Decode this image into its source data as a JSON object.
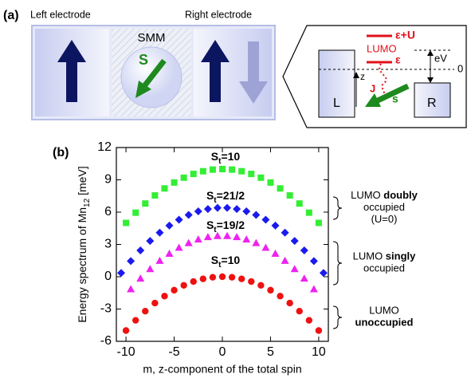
{
  "diagram": {
    "panel_label": "(a)",
    "left_label": "Left electrode",
    "right_label": "Right electrode",
    "molecule": "SMM",
    "spin": "S",
    "inset": {
      "level_upper": "ε+U",
      "level_name": "LUMO",
      "level_lower": "ε",
      "bias": "eV",
      "zero": "0",
      "axis": "z",
      "coupling": "J",
      "spin": "s",
      "left": "L",
      "right": "R"
    }
  },
  "chart_data": {
    "type": "scatter",
    "panel_label": "(b)",
    "ylabel": [
      "Energy spectrum of Mn",
      "12",
      " [meV]"
    ],
    "xlabel": "m, z-component of the total spin",
    "xlim": [
      -11,
      11
    ],
    "xticks": [
      -10,
      -5,
      0,
      5,
      10
    ],
    "ylim": [
      -6,
      12
    ],
    "yticks": [
      -6,
      -3,
      0,
      3,
      6,
      9,
      12
    ],
    "series": [
      {
        "label": [
          "S",
          "t",
          "=10"
        ],
        "marker": "square",
        "color": "#33ee33",
        "x": [
          -10,
          -9,
          -8,
          -7,
          -6,
          -5,
          -4,
          -3,
          -2,
          -1,
          0,
          1,
          2,
          3,
          4,
          5,
          6,
          7,
          8,
          9,
          10
        ],
        "values": [
          5,
          5.95,
          6.8,
          7.55,
          8.2,
          8.75,
          9.2,
          9.55,
          9.8,
          9.95,
          10,
          9.95,
          9.8,
          9.55,
          9.2,
          8.75,
          8.2,
          7.55,
          6.8,
          5.95,
          5
        ]
      },
      {
        "label": [
          "S",
          "t",
          "=21/2"
        ],
        "marker": "diamond",
        "color": "#1a1aee",
        "x": [
          -10.5,
          -9.5,
          -8.5,
          -7.5,
          -6.5,
          -5.5,
          -4.5,
          -3.5,
          -2.5,
          -1.5,
          -0.5,
          0.5,
          1.5,
          2.5,
          3.5,
          4.5,
          5.5,
          6.5,
          7.5,
          8.5,
          9.5,
          10.5
        ],
        "values": [
          0.35,
          1.45,
          2.44,
          3.32,
          4.09,
          4.75,
          5.3,
          5.74,
          6.07,
          6.29,
          6.4,
          6.4,
          6.29,
          6.07,
          5.74,
          5.3,
          4.75,
          4.09,
          3.32,
          2.44,
          1.45,
          0.35
        ]
      },
      {
        "label": [
          "S",
          "t",
          "=19/2"
        ],
        "marker": "triangle",
        "color": "#ee22ee",
        "x": [
          -9.5,
          -8.5,
          -7.5,
          -6.5,
          -5.5,
          -4.5,
          -3.5,
          -2.5,
          -1.5,
          -0.5,
          0.5,
          1.5,
          2.5,
          3.5,
          4.5,
          5.5,
          6.5,
          7.5,
          8.5,
          9.5
        ],
        "values": [
          -1.15,
          -0.16,
          0.72,
          1.49,
          2.15,
          2.7,
          3.14,
          3.47,
          3.69,
          3.8,
          3.8,
          3.69,
          3.47,
          3.14,
          2.7,
          2.15,
          1.49,
          0.72,
          -0.16,
          -1.15
        ]
      },
      {
        "label": [
          "S",
          "t",
          "=10"
        ],
        "marker": "circle",
        "color": "#ee1111",
        "x": [
          -10,
          -9,
          -8,
          -7,
          -6,
          -5,
          -4,
          -3,
          -2,
          -1,
          0,
          1,
          2,
          3,
          4,
          5,
          6,
          7,
          8,
          9,
          10
        ],
        "values": [
          -5,
          -4.05,
          -3.2,
          -2.45,
          -1.8,
          -1.25,
          -0.8,
          -0.45,
          -0.2,
          -0.05,
          0,
          -0.05,
          -0.2,
          -0.45,
          -0.8,
          -1.25,
          -1.8,
          -2.45,
          -3.2,
          -4.05,
          -5
        ]
      }
    ],
    "brackets": [
      {
        "lines": [
          [
            {
              "text": "LUMO ",
              "bold": false
            },
            {
              "text": "doubly",
              "bold": true
            }
          ],
          [
            {
              "text": "occupied",
              "bold": false
            }
          ],
          [
            {
              "text": "(U=0)",
              "bold": false
            }
          ]
        ]
      },
      {
        "lines": [
          [
            {
              "text": "LUMO ",
              "bold": false
            },
            {
              "text": "singly",
              "bold": true
            }
          ],
          [
            {
              "text": "occupied",
              "bold": false
            }
          ]
        ]
      },
      {
        "lines": [
          [
            {
              "text": "LUMO",
              "bold": false
            }
          ],
          [
            {
              "text": "unoccupied",
              "bold": true
            }
          ]
        ]
      }
    ]
  }
}
